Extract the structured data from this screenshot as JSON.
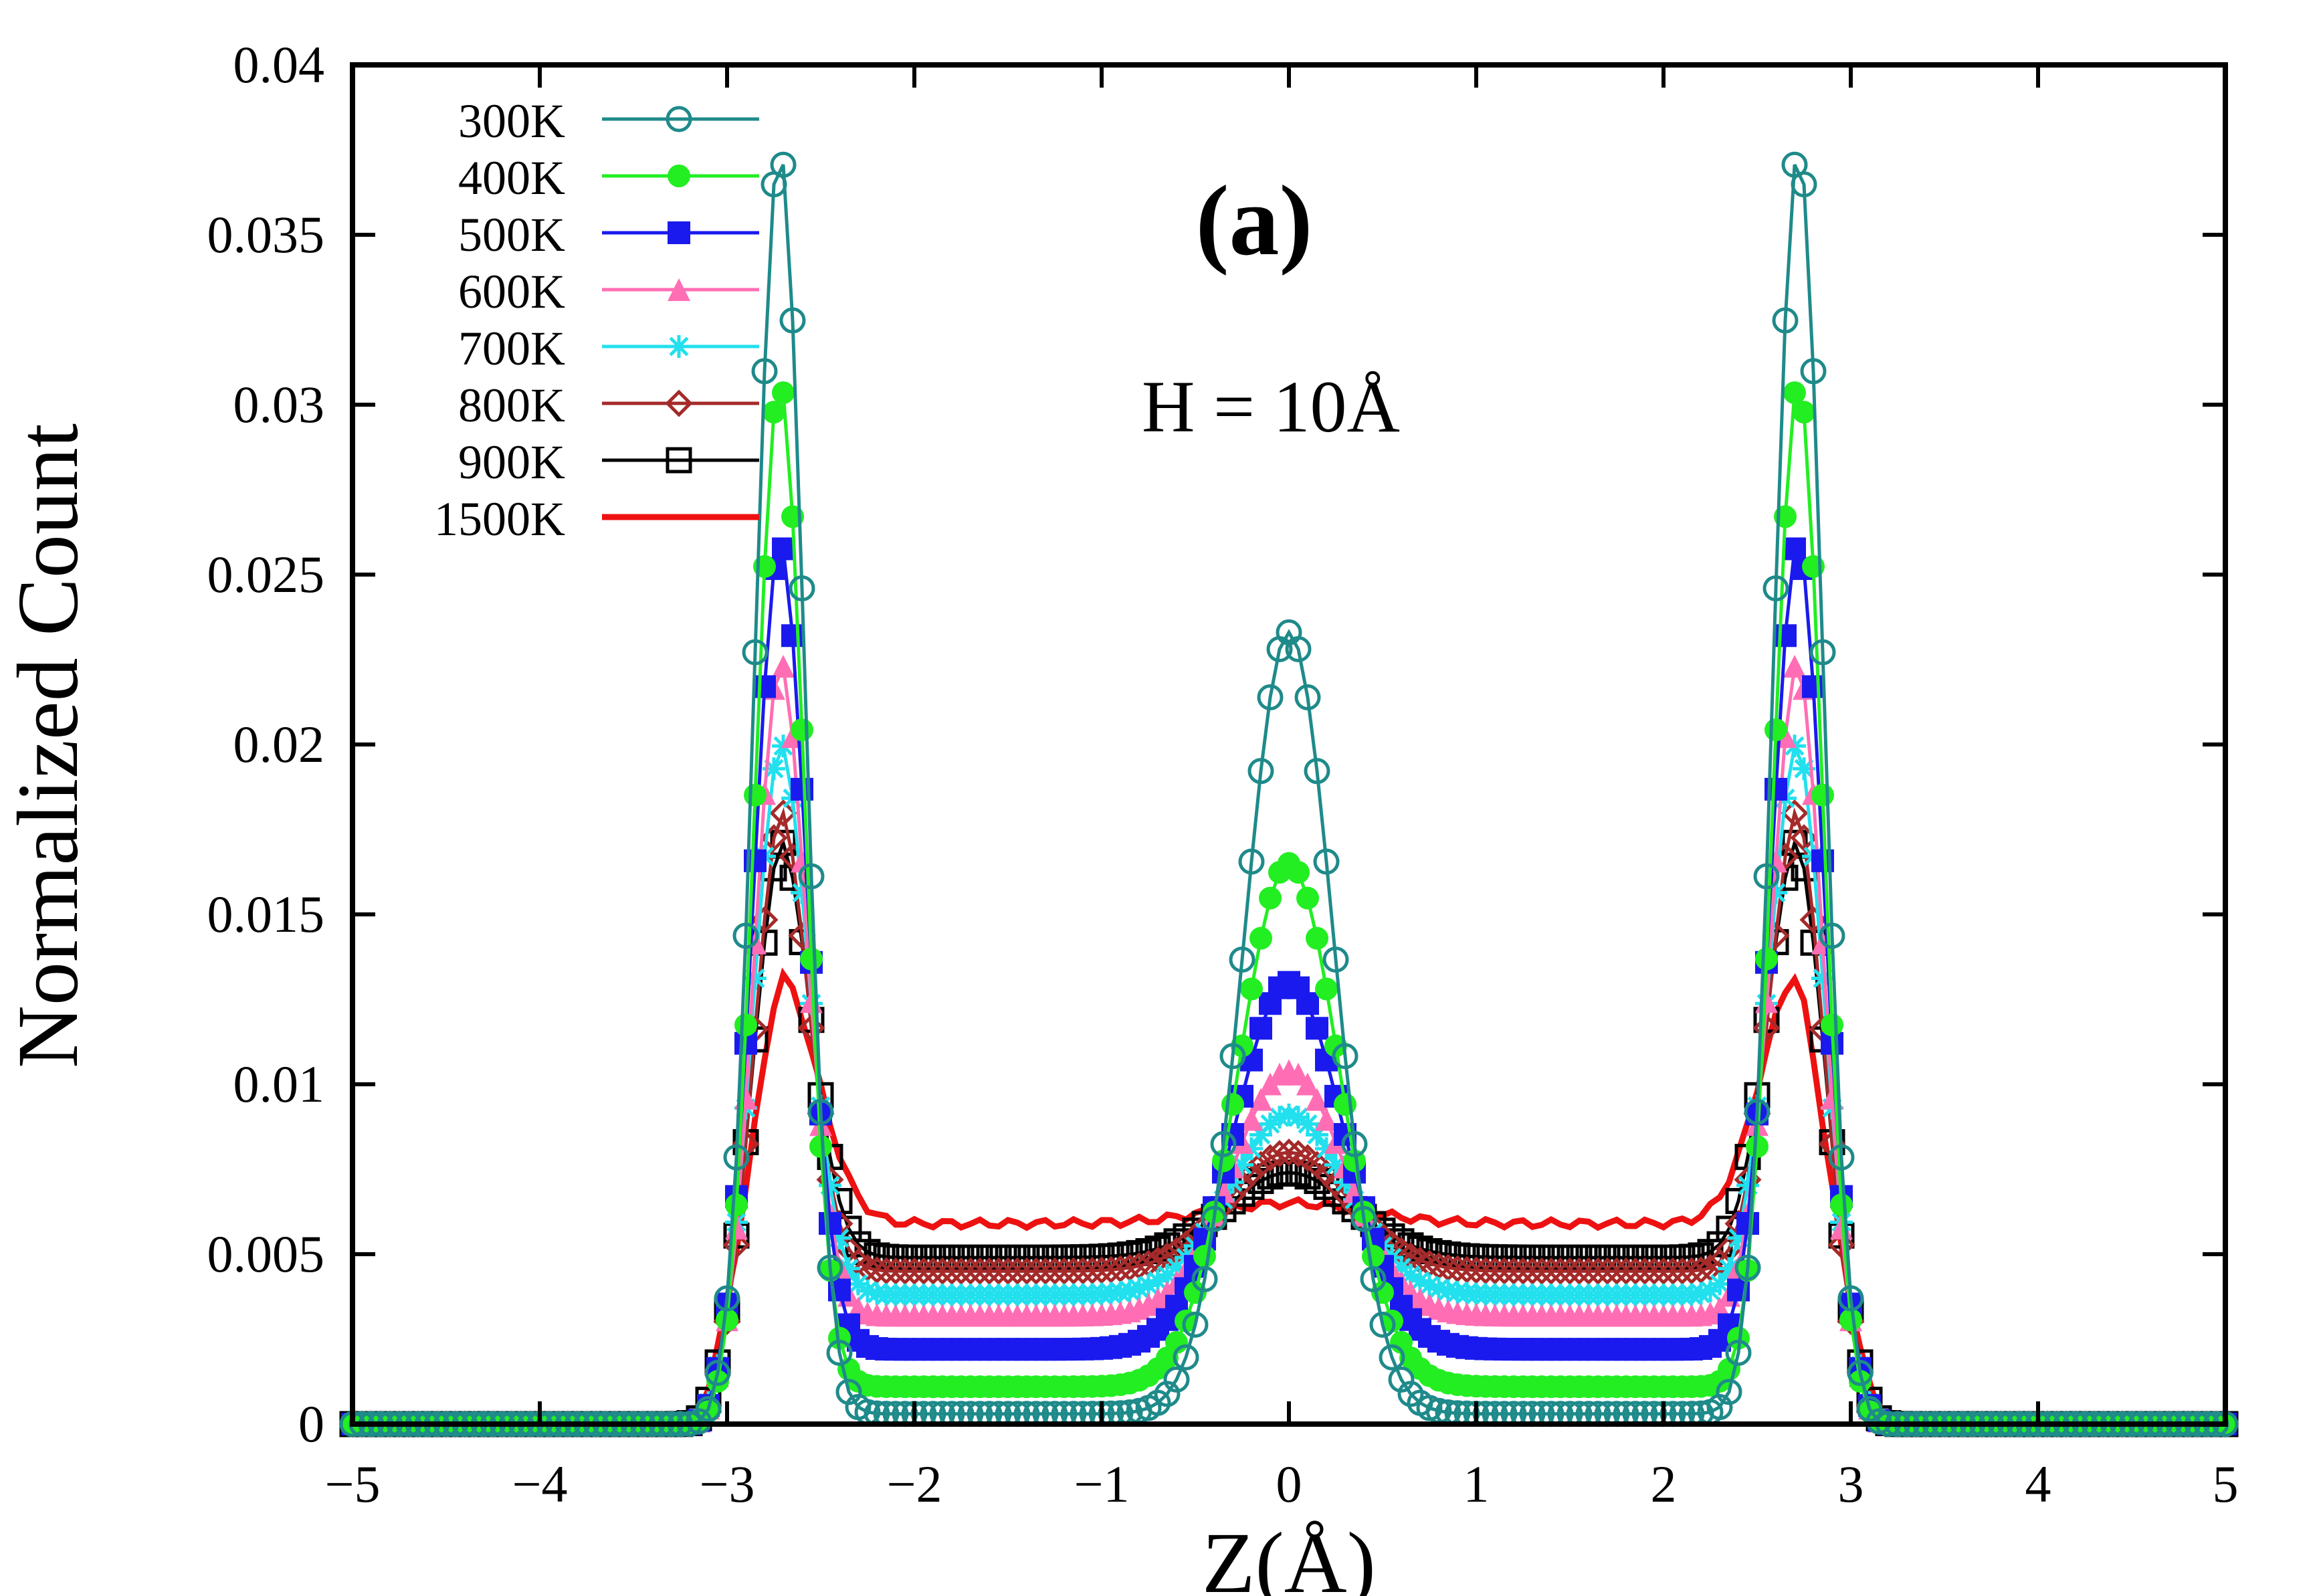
{
  "chart_data": {
    "type": "line",
    "panel_label": "(a)",
    "annotation": "H = 10Å",
    "xlabel": "Z(Å)",
    "ylabel": "Normalized Count",
    "xlim": [
      -5,
      5
    ],
    "ylim": [
      0,
      0.04
    ],
    "xticks": [
      -5,
      -4,
      -3,
      -2,
      -1,
      0,
      1,
      2,
      3,
      4,
      5
    ],
    "xtick_labels": [
      "−5",
      "−4",
      "−3",
      "−2",
      "−1",
      "0",
      "1",
      "2",
      "3",
      "4",
      "5"
    ],
    "yticks": [
      0,
      0.005,
      0.01,
      0.015,
      0.02,
      0.025,
      0.03,
      0.035,
      0.04
    ],
    "ytick_labels": [
      "0",
      "0.005",
      "0.01",
      "0.015",
      "0.02",
      "0.025",
      "0.03",
      "0.035",
      "0.04"
    ],
    "grid": false,
    "legend_position": "top-left",
    "series": [
      {
        "name": "300K",
        "color": "#1f8a8a",
        "marker": "open-circle",
        "peak": 0.0375,
        "center": 0.0233,
        "valley": 0.0003,
        "sigma": 0.13,
        "center_sigma": 0.24
      },
      {
        "name": "400K",
        "color": "#22ee22",
        "marker": "filled-circle",
        "peak": 0.0307,
        "center": 0.0165,
        "valley": 0.0011,
        "sigma": 0.13,
        "center_sigma": 0.27
      },
      {
        "name": "500K",
        "color": "#1a1aee",
        "marker": "filled-square",
        "peak": 0.026,
        "center": 0.013,
        "valley": 0.0022,
        "sigma": 0.14,
        "center_sigma": 0.29
      },
      {
        "name": "600K",
        "color": "#ff6eb4",
        "marker": "filled-triangle",
        "peak": 0.0225,
        "center": 0.0104,
        "valley": 0.0032,
        "sigma": 0.14,
        "center_sigma": 0.3
      },
      {
        "name": "700K",
        "color": "#22e0ee",
        "marker": "star",
        "peak": 0.0201,
        "center": 0.0091,
        "valley": 0.0038,
        "sigma": 0.15,
        "center_sigma": 0.31
      },
      {
        "name": "800K",
        "color": "#a52a2a",
        "marker": "open-diamond",
        "peak": 0.0181,
        "center": 0.008,
        "valley": 0.0045,
        "sigma": 0.15,
        "center_sigma": 0.32
      },
      {
        "name": "900K",
        "color": "#000000",
        "marker": "open-square",
        "peak": 0.0172,
        "center": 0.0074,
        "valley": 0.0049,
        "sigma": 0.16,
        "center_sigma": 0.33
      },
      {
        "name": "1500K",
        "color": "#ee1111",
        "marker": "none",
        "peak": 0.0132,
        "center": 0.0065,
        "valley": 0.0059,
        "sigma": 0.2,
        "center_sigma": 0.4
      }
    ]
  }
}
